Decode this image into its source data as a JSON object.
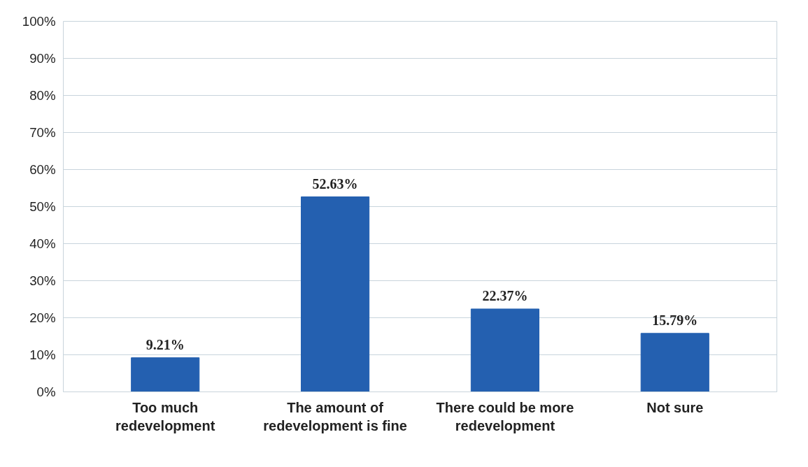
{
  "chart_data": {
    "type": "bar",
    "categories": [
      "Too much redevelopment",
      "The amount of redevelopment is fine",
      "There could be more redevelopment",
      "Not sure"
    ],
    "values": [
      9.21,
      52.63,
      22.37,
      15.79
    ],
    "value_labels": [
      "9.21%",
      "52.63%",
      "22.37%",
      "15.79%"
    ],
    "color": "#2460b0",
    "ylim": [
      0,
      100
    ],
    "yticks": [
      {
        "value": 0,
        "label": "0%"
      },
      {
        "value": 10,
        "label": "10%"
      },
      {
        "value": 20,
        "label": "20%"
      },
      {
        "value": 30,
        "label": "30%"
      },
      {
        "value": 40,
        "label": "40%"
      },
      {
        "value": 50,
        "label": "50%"
      },
      {
        "value": 60,
        "label": "60%"
      },
      {
        "value": 70,
        "label": "70%"
      },
      {
        "value": 80,
        "label": "80%"
      },
      {
        "value": 90,
        "label": "90%"
      },
      {
        "value": 100,
        "label": "100%"
      }
    ],
    "grid": "y"
  }
}
